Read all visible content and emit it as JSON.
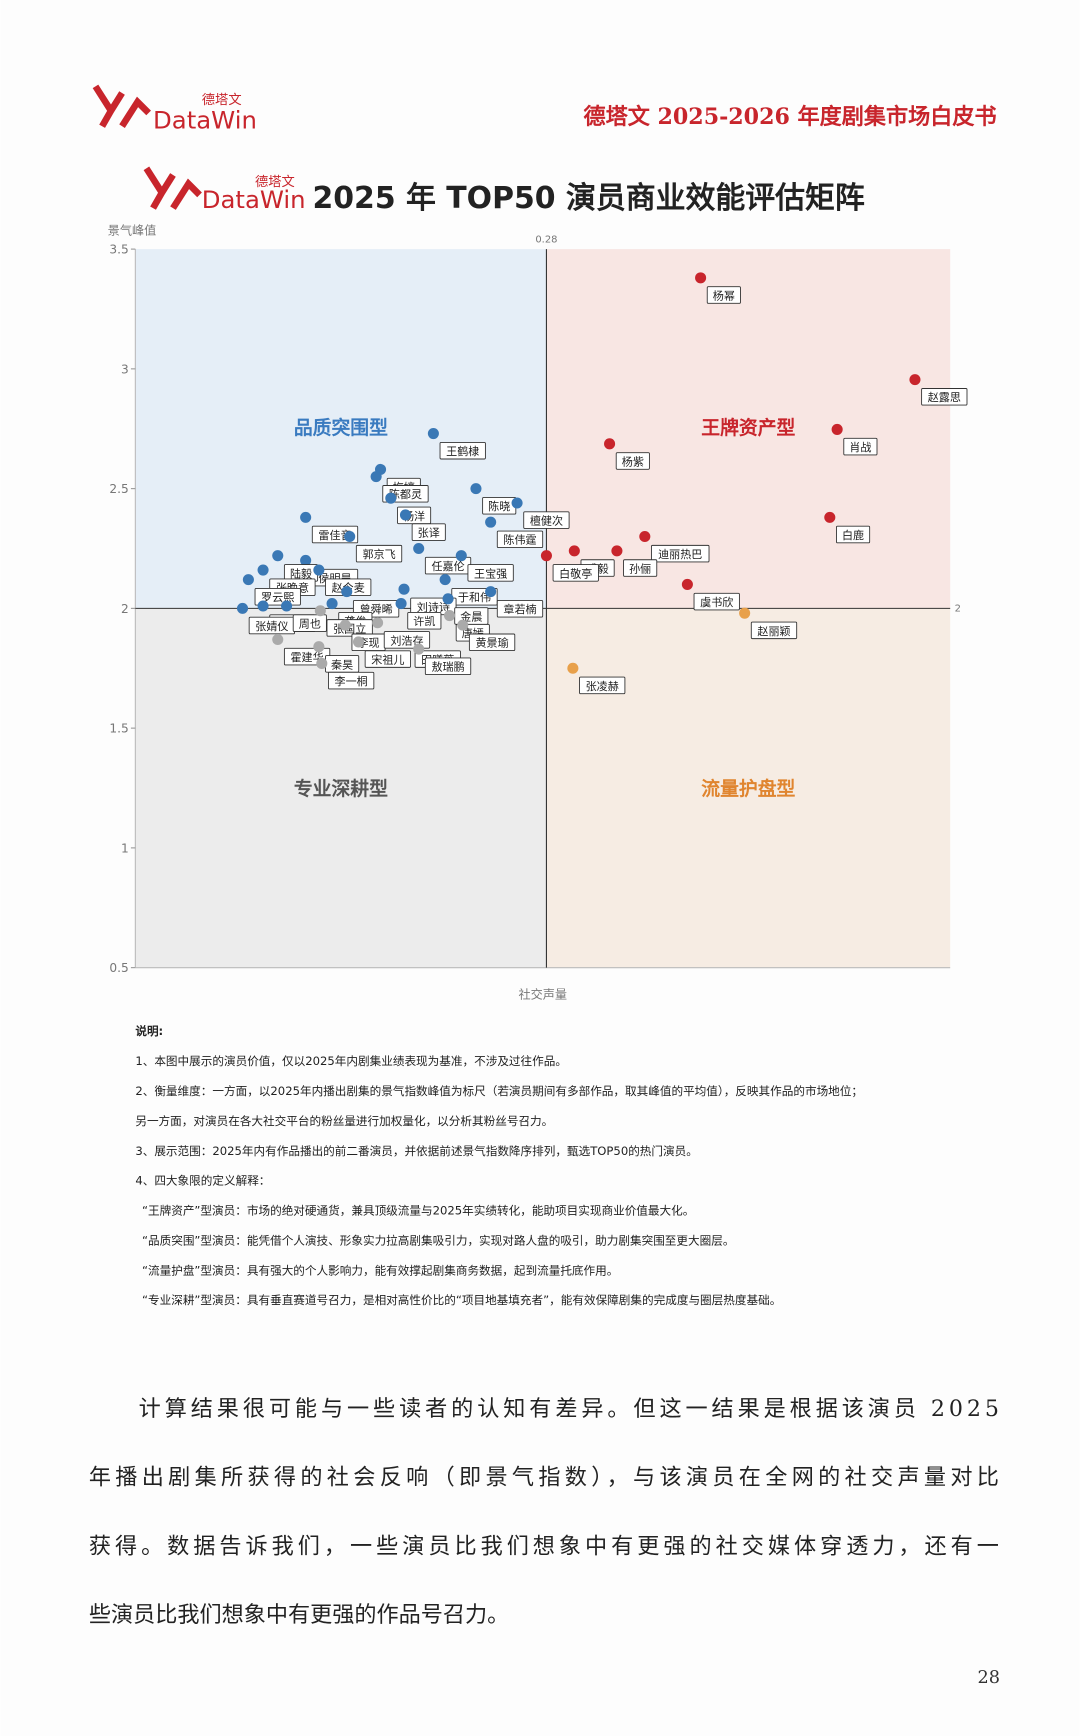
{
  "header": {
    "logo_text": "DataWin",
    "logo_cn": "德塔文",
    "title": "德塔文 2025-2026 年度剧集市场白皮书"
  },
  "chart_data": {
    "type": "scatter",
    "title": "2025 年 TOP50 演员商业效能评估矩阵",
    "logo_text": "DataWin",
    "logo_cn": "德塔文",
    "y_label": "景气峰值",
    "x_label": "社交声量",
    "xlim": [
      0,
      0.555
    ],
    "ylim": [
      0.5,
      3.5
    ],
    "yticks": [
      0.5,
      1,
      1.5,
      2,
      2.5,
      3,
      3.5
    ],
    "x_divider": 0.28,
    "y_divider": 2,
    "quadrants": [
      {
        "label": "品质突围型",
        "color": "#3a7bc0",
        "background": "#e5eef7"
      },
      {
        "label": "王牌资产型",
        "color": "#c8252c",
        "background": "#f8e6e3"
      },
      {
        "label": "专业深耕型",
        "color": "#555555",
        "background": "#ececec"
      },
      {
        "label": "流量护盘型",
        "color": "#e0852f",
        "background": "#f6ece3"
      }
    ],
    "points": [
      {
        "label": "杨幂",
        "x": 0.385,
        "y": 3.38,
        "color": "#c8252c"
      },
      {
        "label": "赵露思",
        "x": 0.531,
        "y": 2.955,
        "color": "#c8252c"
      },
      {
        "label": "肖战",
        "x": 0.478,
        "y": 2.747,
        "color": "#c8252c"
      },
      {
        "label": "杨紫",
        "x": 0.323,
        "y": 2.687,
        "color": "#c8252c"
      },
      {
        "label": "白鹿",
        "x": 0.473,
        "y": 2.38,
        "color": "#c8252c"
      },
      {
        "label": "成毅",
        "x": 0.299,
        "y": 2.24,
        "color": "#c8252c"
      },
      {
        "label": "迪丽热巴",
        "x": 0.347,
        "y": 2.3,
        "color": "#c8252c"
      },
      {
        "label": "孙俪",
        "x": 0.328,
        "y": 2.24,
        "color": "#c8252c"
      },
      {
        "label": "白敬亭",
        "x": 0.28,
        "y": 2.22,
        "color": "#c8252c"
      },
      {
        "label": "虞书欣",
        "x": 0.376,
        "y": 2.1,
        "color": "#c8252c"
      },
      {
        "label": "赵丽颖",
        "x": 0.415,
        "y": 1.98,
        "color": "#e8a04a"
      },
      {
        "label": "张凌赫",
        "x": 0.298,
        "y": 1.75,
        "color": "#e8a04a"
      },
      {
        "label": "王鹤棣",
        "x": 0.203,
        "y": 2.73,
        "color": "#3a78b5"
      },
      {
        "label": "梅婷",
        "x": 0.167,
        "y": 2.58,
        "color": "#3a78b5"
      },
      {
        "label": "陈都灵",
        "x": 0.164,
        "y": 2.55,
        "color": "#3a78b5"
      },
      {
        "label": "杨洋",
        "x": 0.174,
        "y": 2.46,
        "color": "#3a78b5"
      },
      {
        "label": "陈晓",
        "x": 0.232,
        "y": 2.5,
        "color": "#3a78b5"
      },
      {
        "label": "檀健次",
        "x": 0.26,
        "y": 2.44,
        "color": "#3a78b5"
      },
      {
        "label": "张译",
        "x": 0.184,
        "y": 2.39,
        "color": "#3a78b5"
      },
      {
        "label": "雷佳音",
        "x": 0.116,
        "y": 2.38,
        "color": "#3a78b5"
      },
      {
        "label": "陈伟霆",
        "x": 0.242,
        "y": 2.36,
        "color": "#3a78b5"
      },
      {
        "label": "郭京飞",
        "x": 0.146,
        "y": 2.3,
        "color": "#3a78b5"
      },
      {
        "label": "任嘉伦",
        "x": 0.193,
        "y": 2.25,
        "color": "#3a78b5"
      },
      {
        "label": "王宝强",
        "x": 0.222,
        "y": 2.22,
        "color": "#3a78b5"
      },
      {
        "label": "侯明昊",
        "x": 0.116,
        "y": 2.2,
        "color": "#3a78b5"
      },
      {
        "label": "陆毅",
        "x": 0.097,
        "y": 2.22,
        "color": "#3a78b5"
      },
      {
        "label": "张晚意",
        "x": 0.087,
        "y": 2.16,
        "color": "#3a78b5"
      },
      {
        "label": "罗云熙",
        "x": 0.077,
        "y": 2.12,
        "color": "#3a78b5"
      },
      {
        "label": "于和伟",
        "x": 0.211,
        "y": 2.12,
        "color": "#3a78b5"
      },
      {
        "label": "赵今麦",
        "x": 0.125,
        "y": 2.16,
        "color": "#3a78b5"
      },
      {
        "label": "刘诗诗",
        "x": 0.183,
        "y": 2.08,
        "color": "#3a78b5"
      },
      {
        "label": "曾舜晞",
        "x": 0.144,
        "y": 2.07,
        "color": "#3a78b5"
      },
      {
        "label": "龚俊",
        "x": 0.134,
        "y": 2.02,
        "color": "#3a78b5"
      },
      {
        "label": "金晨",
        "x": 0.213,
        "y": 2.04,
        "color": "#3a78b5"
      },
      {
        "label": "章若楠",
        "x": 0.242,
        "y": 2.07,
        "color": "#3a78b5"
      },
      {
        "label": "李兰迪",
        "x": 0.087,
        "y": 2.01,
        "color": "#3a78b5"
      },
      {
        "label": "张婧仪",
        "x": 0.073,
        "y": 2.0,
        "color": "#3a78b5"
      },
      {
        "label": "周也",
        "x": 0.103,
        "y": 2.01,
        "color": "#3a78b5"
      },
      {
        "label": "许凯",
        "x": 0.181,
        "y": 2.02,
        "color": "#3a78b5"
      },
      {
        "label": "张国立",
        "x": 0.126,
        "y": 1.99,
        "color": "#aaaaaa"
      },
      {
        "label": "唐嫣",
        "x": 0.214,
        "y": 1.97,
        "color": "#aaaaaa"
      },
      {
        "label": "黄景瑜",
        "x": 0.223,
        "y": 1.93,
        "color": "#aaaaaa"
      },
      {
        "label": "田曦薇",
        "x": 0.186,
        "y": 1.86,
        "color": "#aaaaaa"
      },
      {
        "label": "李现",
        "x": 0.143,
        "y": 1.93,
        "color": "#aaaaaa"
      },
      {
        "label": "刘浩存",
        "x": 0.165,
        "y": 1.94,
        "color": "#aaaaaa"
      },
      {
        "label": "敖瑞鹏",
        "x": 0.193,
        "y": 1.83,
        "color": "#aaaaaa"
      },
      {
        "label": "宋祖儿",
        "x": 0.152,
        "y": 1.86,
        "color": "#aaaaaa"
      },
      {
        "label": "霍建华",
        "x": 0.097,
        "y": 1.87,
        "color": "#aaaaaa"
      },
      {
        "label": "秦昊",
        "x": 0.125,
        "y": 1.84,
        "color": "#aaaaaa"
      },
      {
        "label": "李一桐",
        "x": 0.127,
        "y": 1.77,
        "color": "#aaaaaa"
      }
    ]
  },
  "notes": [
    "说明:",
    "1、本图中展示的演员价值，仅以2025年内剧集业绩表现为基准，不涉及过往作品。",
    "2、衡量维度：一方面，以2025年内播出剧集的景气指数峰值为标尺（若演员期间有多部作品，取其峰值的平均值），反映其作品的市场地位；",
    "另一方面，对演员在各大社交平台的粉丝量进行加权量化，以分析其粉丝号召力。",
    "3、展示范围：2025年内有作品播出的前二番演员，并依据前述景气指数降序排列，甄选TOP50的热门演员。",
    "4、四大象限的定义解释：",
    "“王牌资产”型演员：市场的绝对硬通货，兼具顶级流量与2025年实绩转化，能助项目实现商业价值最大化。",
    "“品质突围”型演员：能凭借个人演技、形象实力拉高剧集吸引力，实现对路人盘的吸引，助力剧集突围至更大圈层。",
    "“流量护盘”型演员：具有强大的个人影响力，能有效撑起剧集商务数据，起到流量托底作用。",
    "“专业深耕”型演员：具有垂直赛道号召力，是相对高性价比的“项目地基填充者”，能有效保障剧集的完成度与圈层热度基础。"
  ],
  "body": [
    "计算结果很可能与一些读者的认知有差异。但这一结果是根据该演员 2025",
    "年播出剧集所获得的社会反响（即景气指数），与该演员在全网的社交声量对比",
    "获得。数据告诉我们，一些演员比我们想象中有更强的社交媒体穿透力，还有一",
    "些演员比我们想象中有更强的作品号召力。"
  ],
  "page_number": "28"
}
